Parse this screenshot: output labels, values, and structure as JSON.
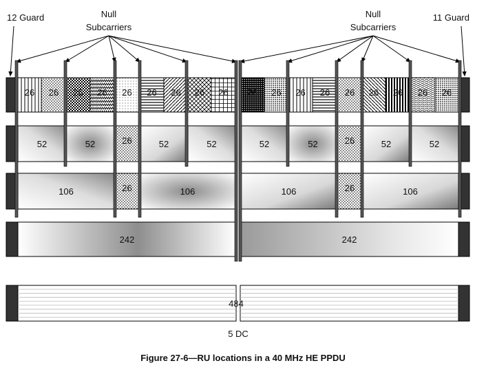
{
  "labels": {
    "guard_left": "12 Guard",
    "guard_right": "11 Guard",
    "null_left": [
      "Null",
      "Subcarriers"
    ],
    "null_right": [
      "Null",
      "Subcarriers"
    ],
    "dc": "5 DC",
    "caption": "Figure 27-6—RU locations in a 40 MHz HE PPDU"
  },
  "rows": {
    "ru26": [
      "26",
      "26",
      "26",
      "26",
      "26",
      "26",
      "26",
      "26",
      "26",
      "26",
      "26",
      "26",
      "26",
      "26",
      "26",
      "26",
      "26",
      "26"
    ],
    "ru52": [
      "52",
      "52",
      "26",
      "52",
      "52",
      "52",
      "52",
      "26",
      "52",
      "52"
    ],
    "ru106": [
      "106",
      "26",
      "106",
      "106",
      "26",
      "106"
    ],
    "ru242": [
      "242",
      "242"
    ],
    "ru484": [
      "484"
    ]
  }
}
